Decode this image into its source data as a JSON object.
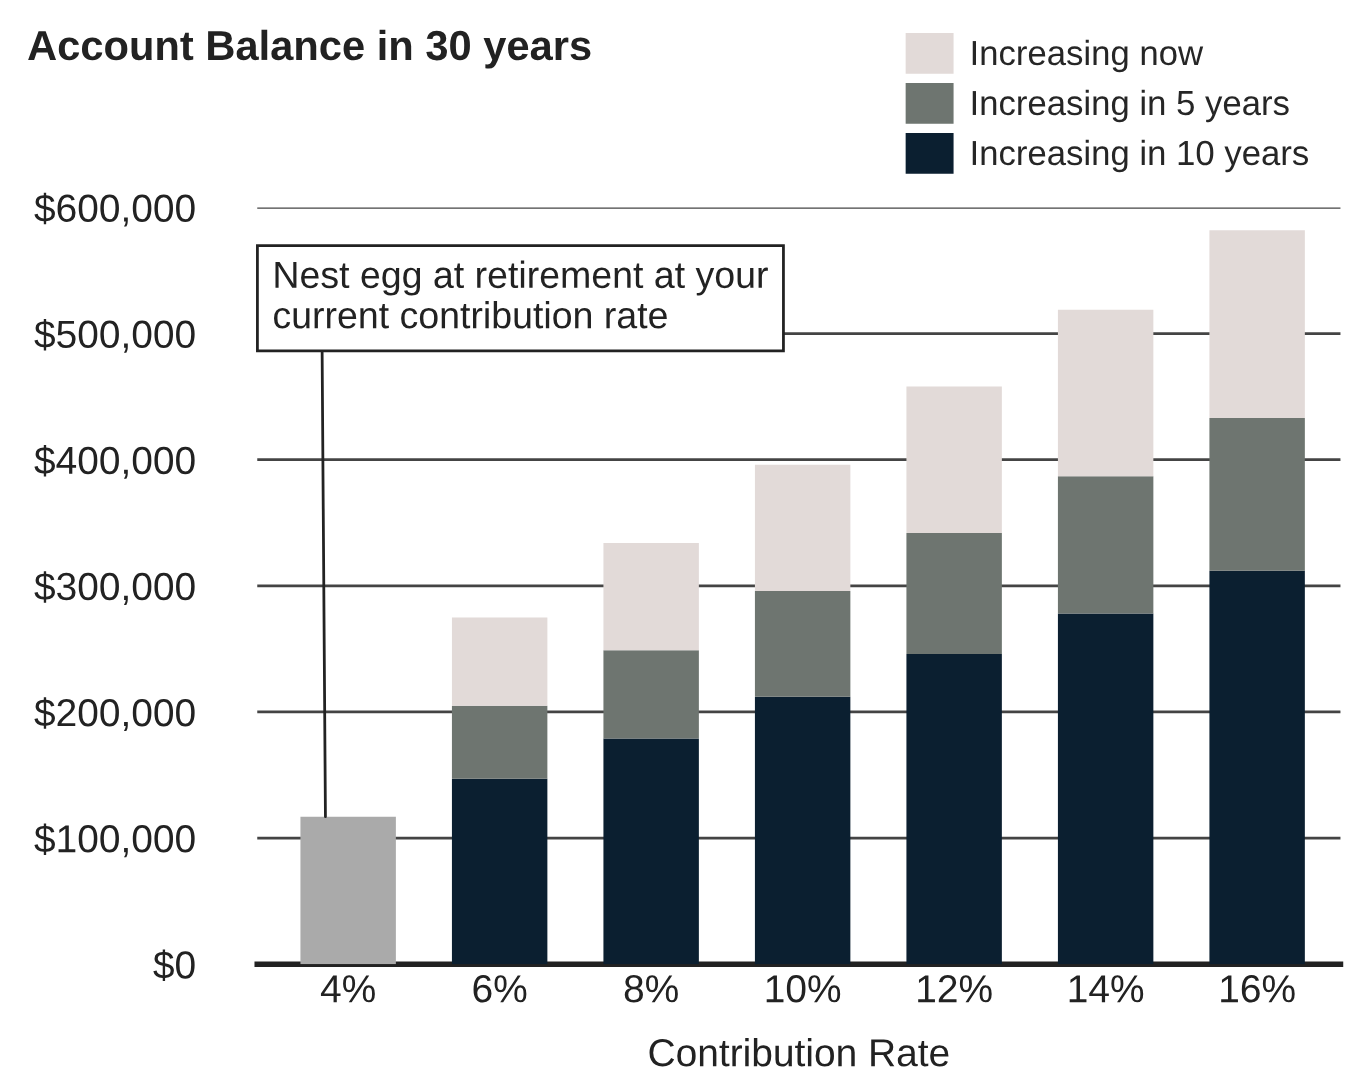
{
  "chart_data": {
    "type": "bar",
    "title": "Account Balance in 30 years",
    "xlabel": "Contribution Rate",
    "stacked": true,
    "categories": [
      "4%",
      "6%",
      "8%",
      "10%",
      "12%",
      "14%",
      "16%"
    ],
    "series": [
      {
        "color": "#aaaaaa",
        "values": [
          117000,
          null,
          null,
          null,
          null,
          null,
          null
        ]
      },
      {
        "name": "Increasing in 10 years",
        "color": "#0b1f30",
        "values": [
          null,
          147000,
          179000,
          212000,
          246000,
          278000,
          312000
        ]
      },
      {
        "name": "Increasing in 5 years",
        "color": "#6e7570",
        "values": [
          null,
          58000,
          70000,
          84000,
          96000,
          109000,
          121000
        ]
      },
      {
        "name": "Increasing now",
        "color": "#e2dad8",
        "values": [
          null,
          70000,
          85000,
          100000,
          116000,
          132000,
          149000
        ]
      }
    ],
    "ylim": [
      0,
      600000
    ],
    "yticks": [
      {
        "value": 0,
        "label": "$0"
      },
      {
        "value": 100000,
        "label": "$100,000"
      },
      {
        "value": 200000,
        "label": "$200,000"
      },
      {
        "value": 300000,
        "label": "$300,000"
      },
      {
        "value": 400000,
        "label": "$400,000"
      },
      {
        "value": 500000,
        "label": "$500,000"
      },
      {
        "value": 600000,
        "label": "$600,000"
      }
    ],
    "grid": "y",
    "legend": "top right",
    "annotations": [
      "Nest egg at retirement at your\ncurrent contribution rate"
    ]
  }
}
